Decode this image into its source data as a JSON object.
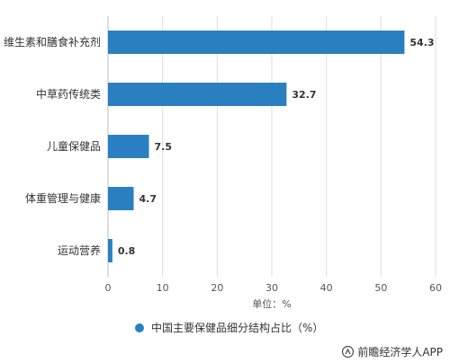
{
  "chart_data": {
    "type": "bar",
    "orientation": "horizontal",
    "categories": [
      "维生素和膳食补充剂",
      "中草药传统类",
      "儿童保健品",
      "体重管理与健康",
      "运动营养"
    ],
    "series": [
      {
        "name": "中国主要保健品细分结构占比（%）",
        "values": [
          54.3,
          32.7,
          7.5,
          4.7,
          0.8
        ]
      }
    ],
    "data_labels": [
      "54.3",
      "32.7",
      "7.5",
      "4.7",
      "0.8"
    ],
    "xlabel": "单位：%",
    "ylabel": "",
    "xlim": [
      0,
      60
    ],
    "xticks": [
      0,
      10,
      20,
      30,
      40,
      50,
      60
    ],
    "grid": true,
    "legend_position": "bottom",
    "bar_color": "#2a7fc1"
  },
  "credit": "前瞻经济学人APP"
}
